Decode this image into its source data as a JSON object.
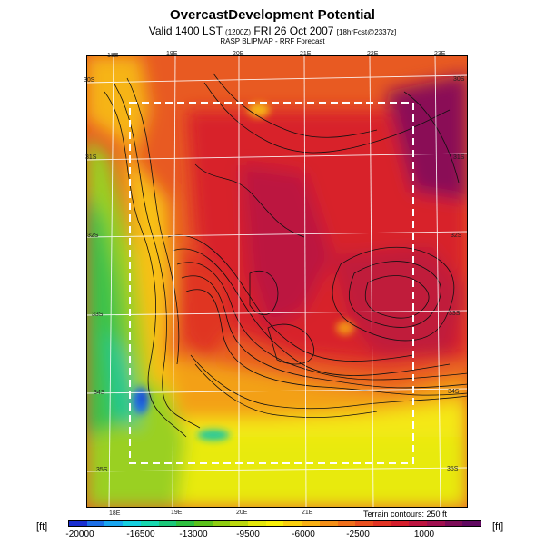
{
  "header": {
    "title": "OvercastDevelopment Potential",
    "valid_prefix": "Valid 1400 LST",
    "valid_code": "(1200Z)",
    "valid_date": "FRI 26 Oct 2007",
    "valid_suffix": "[18hrFcst@2337z]",
    "subtitle": "RASP BLIPMAP - RRF Forecast"
  },
  "map": {
    "lon_labels": [
      "18E",
      "19E",
      "20E",
      "21E",
      "22E",
      "23E"
    ],
    "lat_labels": [
      "30S",
      "31S",
      "32S",
      "33S",
      "34S",
      "35S"
    ],
    "terrain_note": "Terrain contours: 250 ft"
  },
  "colorbar": {
    "unit_left": "[ft]",
    "unit_right": "[ft]",
    "tick_labels": [
      "-20000",
      "-16500",
      "-13000",
      "-9500",
      "-6000",
      "-2500",
      "1000"
    ],
    "colors": [
      "#1a2fd0",
      "#1d6fe6",
      "#1aa6f0",
      "#16d0e0",
      "#18d8b0",
      "#1cc87a",
      "#2fc040",
      "#5cc21c",
      "#8fcd12",
      "#bcd80e",
      "#e4e80c",
      "#f8f00a",
      "#fad010",
      "#f8b014",
      "#f49018",
      "#f0701c",
      "#ea5020",
      "#e23424",
      "#d41e2c",
      "#bc1440",
      "#a01050",
      "#7c0c58",
      "#600860"
    ]
  }
}
